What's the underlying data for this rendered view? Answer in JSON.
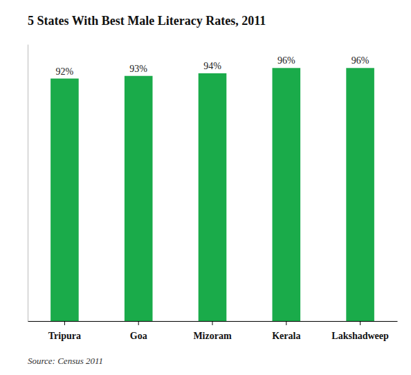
{
  "chart_data": {
    "type": "bar",
    "title": "5 States With Best Male Literacy Rates, 2011",
    "categories": [
      "Tripura",
      "Goa",
      "Mizoram",
      "Kerala",
      "Lakshadweep"
    ],
    "values": [
      92,
      93,
      94,
      96,
      96
    ],
    "value_labels": [
      "92%",
      "93%",
      "94%",
      "96%",
      "96%"
    ],
    "color": "#1aab4a",
    "ylim": [
      0,
      105
    ],
    "data_labels": true,
    "tick_labels": "x",
    "grid": false,
    "annotations": [
      "Source: Census 2011"
    ]
  }
}
